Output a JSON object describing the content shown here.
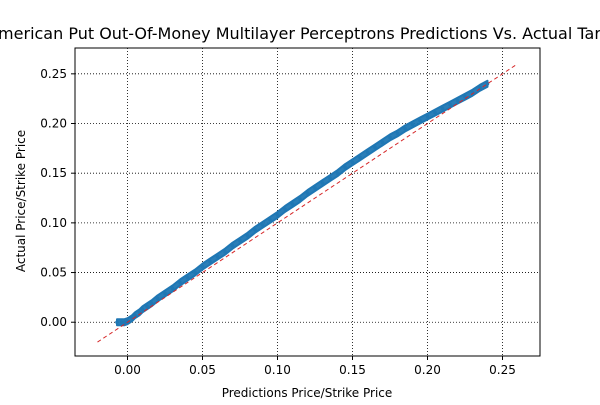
{
  "chart_data": {
    "type": "scatter",
    "title": "American Put Out-Of-Money Multilayer Perceptrons Predictions Vs. Actual Target",
    "xlabel": "Predictions Price/Strike Price",
    "ylabel": "Actual Price/Strike Price",
    "xlim": [
      -0.035,
      0.275
    ],
    "ylim": [
      -0.034,
      0.276
    ],
    "xticks": [
      0.0,
      0.05,
      0.1,
      0.15,
      0.2,
      0.25
    ],
    "yticks": [
      0.0,
      0.05,
      0.1,
      0.15,
      0.2,
      0.25
    ],
    "xtick_labels": [
      "0.00",
      "0.05",
      "0.10",
      "0.15",
      "0.20",
      "0.25"
    ],
    "ytick_labels": [
      "0.00",
      "0.05",
      "0.10",
      "0.15",
      "0.20",
      "0.25"
    ],
    "grid": true,
    "grid_style": "dotted",
    "series": [
      {
        "type": "scatter",
        "color": "#1f77b4",
        "points": [
          [
            -0.007,
            0.0
          ],
          [
            -0.004,
            0.0
          ],
          [
            -0.002,
            0.0
          ],
          [
            0.0,
            0.001
          ],
          [
            0.003,
            0.004
          ],
          [
            0.005,
            0.007
          ],
          [
            0.008,
            0.01
          ],
          [
            0.01,
            0.013
          ],
          [
            0.013,
            0.016
          ],
          [
            0.016,
            0.019
          ],
          [
            0.02,
            0.024
          ],
          [
            0.025,
            0.029
          ],
          [
            0.03,
            0.034
          ],
          [
            0.035,
            0.04
          ],
          [
            0.04,
            0.045
          ],
          [
            0.045,
            0.05
          ],
          [
            0.05,
            0.056
          ],
          [
            0.055,
            0.061
          ],
          [
            0.06,
            0.066
          ],
          [
            0.065,
            0.071
          ],
          [
            0.07,
            0.077
          ],
          [
            0.075,
            0.082
          ],
          [
            0.08,
            0.087
          ],
          [
            0.085,
            0.093
          ],
          [
            0.09,
            0.098
          ],
          [
            0.095,
            0.103
          ],
          [
            0.1,
            0.108
          ],
          [
            0.105,
            0.114
          ],
          [
            0.11,
            0.119
          ],
          [
            0.115,
            0.124
          ],
          [
            0.12,
            0.13
          ],
          [
            0.125,
            0.135
          ],
          [
            0.13,
            0.14
          ],
          [
            0.135,
            0.145
          ],
          [
            0.14,
            0.15
          ],
          [
            0.145,
            0.156
          ],
          [
            0.15,
            0.161
          ],
          [
            0.155,
            0.166
          ],
          [
            0.16,
            0.171
          ],
          [
            0.165,
            0.176
          ],
          [
            0.17,
            0.181
          ],
          [
            0.175,
            0.186
          ],
          [
            0.18,
            0.19
          ],
          [
            0.185,
            0.195
          ],
          [
            0.19,
            0.199
          ],
          [
            0.195,
            0.203
          ],
          [
            0.2,
            0.207
          ],
          [
            0.205,
            0.211
          ],
          [
            0.21,
            0.215
          ],
          [
            0.215,
            0.219
          ],
          [
            0.22,
            0.223
          ],
          [
            0.225,
            0.227
          ],
          [
            0.23,
            0.231
          ],
          [
            0.235,
            0.236
          ],
          [
            0.24,
            0.24
          ]
        ],
        "band_halfwidth": 0.003
      },
      {
        "type": "line",
        "style": "dashed",
        "color": "#d62728",
        "x": [
          -0.02,
          0.26
        ],
        "y": [
          -0.02,
          0.26
        ]
      }
    ]
  }
}
